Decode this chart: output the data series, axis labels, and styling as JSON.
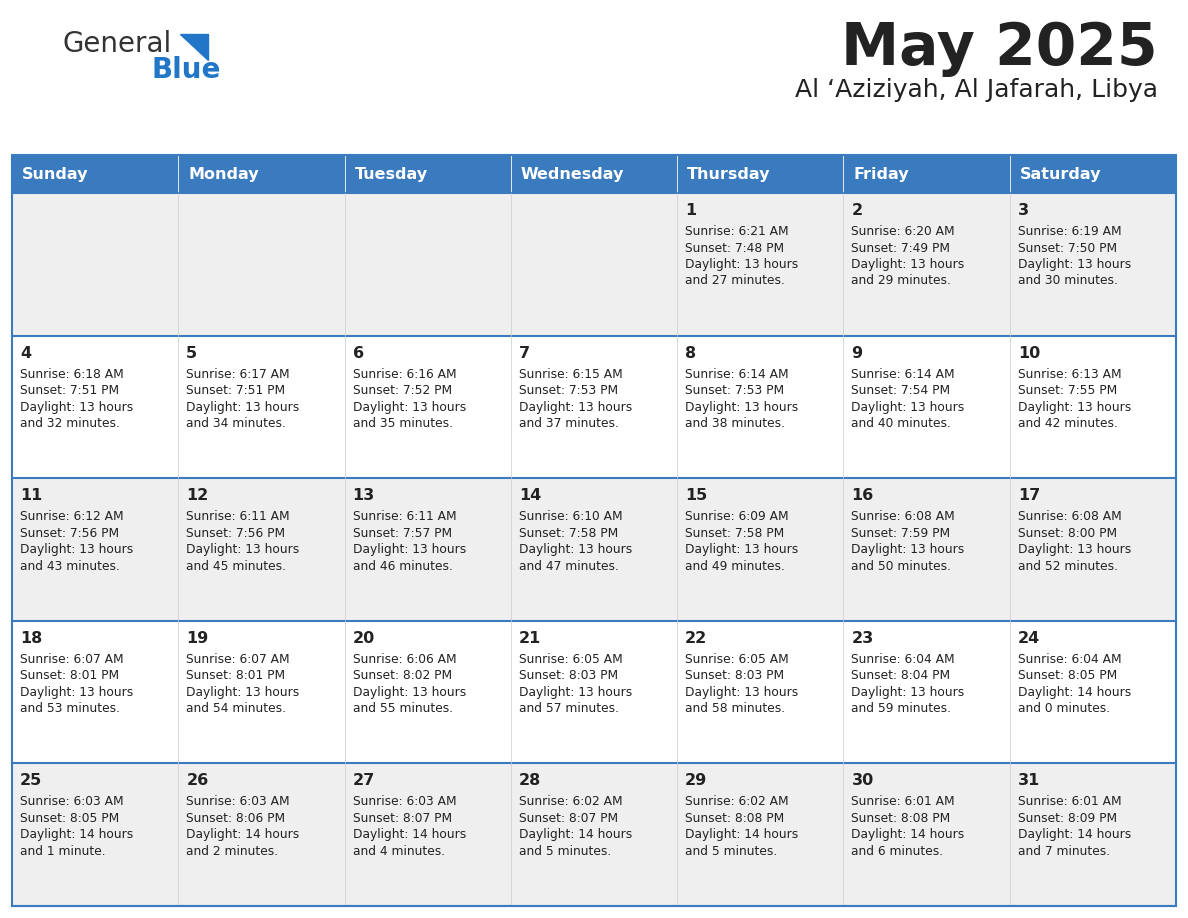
{
  "title": "May 2025",
  "subtitle": "Al ‘Aziziyah, Al Jafarah, Libya",
  "header_bg": "#3a7abf",
  "header_text_color": "#ffffff",
  "day_names": [
    "Sunday",
    "Monday",
    "Tuesday",
    "Wednesday",
    "Thursday",
    "Friday",
    "Saturday"
  ],
  "row_bg_odd": "#efefef",
  "row_bg_even": "#ffffff",
  "cell_border_color": "#3a7abf",
  "text_color": "#222222",
  "days": [
    {
      "day": 1,
      "col": 4,
      "row": 0,
      "sunrise": "6:21 AM",
      "sunset": "7:48 PM",
      "daylight_h": "13 hours",
      "daylight_m": "and 27 minutes."
    },
    {
      "day": 2,
      "col": 5,
      "row": 0,
      "sunrise": "6:20 AM",
      "sunset": "7:49 PM",
      "daylight_h": "13 hours",
      "daylight_m": "and 29 minutes."
    },
    {
      "day": 3,
      "col": 6,
      "row": 0,
      "sunrise": "6:19 AM",
      "sunset": "7:50 PM",
      "daylight_h": "13 hours",
      "daylight_m": "and 30 minutes."
    },
    {
      "day": 4,
      "col": 0,
      "row": 1,
      "sunrise": "6:18 AM",
      "sunset": "7:51 PM",
      "daylight_h": "13 hours",
      "daylight_m": "and 32 minutes."
    },
    {
      "day": 5,
      "col": 1,
      "row": 1,
      "sunrise": "6:17 AM",
      "sunset": "7:51 PM",
      "daylight_h": "13 hours",
      "daylight_m": "and 34 minutes."
    },
    {
      "day": 6,
      "col": 2,
      "row": 1,
      "sunrise": "6:16 AM",
      "sunset": "7:52 PM",
      "daylight_h": "13 hours",
      "daylight_m": "and 35 minutes."
    },
    {
      "day": 7,
      "col": 3,
      "row": 1,
      "sunrise": "6:15 AM",
      "sunset": "7:53 PM",
      "daylight_h": "13 hours",
      "daylight_m": "and 37 minutes."
    },
    {
      "day": 8,
      "col": 4,
      "row": 1,
      "sunrise": "6:14 AM",
      "sunset": "7:53 PM",
      "daylight_h": "13 hours",
      "daylight_m": "and 38 minutes."
    },
    {
      "day": 9,
      "col": 5,
      "row": 1,
      "sunrise": "6:14 AM",
      "sunset": "7:54 PM",
      "daylight_h": "13 hours",
      "daylight_m": "and 40 minutes."
    },
    {
      "day": 10,
      "col": 6,
      "row": 1,
      "sunrise": "6:13 AM",
      "sunset": "7:55 PM",
      "daylight_h": "13 hours",
      "daylight_m": "and 42 minutes."
    },
    {
      "day": 11,
      "col": 0,
      "row": 2,
      "sunrise": "6:12 AM",
      "sunset": "7:56 PM",
      "daylight_h": "13 hours",
      "daylight_m": "and 43 minutes."
    },
    {
      "day": 12,
      "col": 1,
      "row": 2,
      "sunrise": "6:11 AM",
      "sunset": "7:56 PM",
      "daylight_h": "13 hours",
      "daylight_m": "and 45 minutes."
    },
    {
      "day": 13,
      "col": 2,
      "row": 2,
      "sunrise": "6:11 AM",
      "sunset": "7:57 PM",
      "daylight_h": "13 hours",
      "daylight_m": "and 46 minutes."
    },
    {
      "day": 14,
      "col": 3,
      "row": 2,
      "sunrise": "6:10 AM",
      "sunset": "7:58 PM",
      "daylight_h": "13 hours",
      "daylight_m": "and 47 minutes."
    },
    {
      "day": 15,
      "col": 4,
      "row": 2,
      "sunrise": "6:09 AM",
      "sunset": "7:58 PM",
      "daylight_h": "13 hours",
      "daylight_m": "and 49 minutes."
    },
    {
      "day": 16,
      "col": 5,
      "row": 2,
      "sunrise": "6:08 AM",
      "sunset": "7:59 PM",
      "daylight_h": "13 hours",
      "daylight_m": "and 50 minutes."
    },
    {
      "day": 17,
      "col": 6,
      "row": 2,
      "sunrise": "6:08 AM",
      "sunset": "8:00 PM",
      "daylight_h": "13 hours",
      "daylight_m": "and 52 minutes."
    },
    {
      "day": 18,
      "col": 0,
      "row": 3,
      "sunrise": "6:07 AM",
      "sunset": "8:01 PM",
      "daylight_h": "13 hours",
      "daylight_m": "and 53 minutes."
    },
    {
      "day": 19,
      "col": 1,
      "row": 3,
      "sunrise": "6:07 AM",
      "sunset": "8:01 PM",
      "daylight_h": "13 hours",
      "daylight_m": "and 54 minutes."
    },
    {
      "day": 20,
      "col": 2,
      "row": 3,
      "sunrise": "6:06 AM",
      "sunset": "8:02 PM",
      "daylight_h": "13 hours",
      "daylight_m": "and 55 minutes."
    },
    {
      "day": 21,
      "col": 3,
      "row": 3,
      "sunrise": "6:05 AM",
      "sunset": "8:03 PM",
      "daylight_h": "13 hours",
      "daylight_m": "and 57 minutes."
    },
    {
      "day": 22,
      "col": 4,
      "row": 3,
      "sunrise": "6:05 AM",
      "sunset": "8:03 PM",
      "daylight_h": "13 hours",
      "daylight_m": "and 58 minutes."
    },
    {
      "day": 23,
      "col": 5,
      "row": 3,
      "sunrise": "6:04 AM",
      "sunset": "8:04 PM",
      "daylight_h": "13 hours",
      "daylight_m": "and 59 minutes."
    },
    {
      "day": 24,
      "col": 6,
      "row": 3,
      "sunrise": "6:04 AM",
      "sunset": "8:05 PM",
      "daylight_h": "14 hours",
      "daylight_m": "and 0 minutes."
    },
    {
      "day": 25,
      "col": 0,
      "row": 4,
      "sunrise": "6:03 AM",
      "sunset": "8:05 PM",
      "daylight_h": "14 hours",
      "daylight_m": "and 1 minute."
    },
    {
      "day": 26,
      "col": 1,
      "row": 4,
      "sunrise": "6:03 AM",
      "sunset": "8:06 PM",
      "daylight_h": "14 hours",
      "daylight_m": "and 2 minutes."
    },
    {
      "day": 27,
      "col": 2,
      "row": 4,
      "sunrise": "6:03 AM",
      "sunset": "8:07 PM",
      "daylight_h": "14 hours",
      "daylight_m": "and 4 minutes."
    },
    {
      "day": 28,
      "col": 3,
      "row": 4,
      "sunrise": "6:02 AM",
      "sunset": "8:07 PM",
      "daylight_h": "14 hours",
      "daylight_m": "and 5 minutes."
    },
    {
      "day": 29,
      "col": 4,
      "row": 4,
      "sunrise": "6:02 AM",
      "sunset": "8:08 PM",
      "daylight_h": "14 hours",
      "daylight_m": "and 5 minutes."
    },
    {
      "day": 30,
      "col": 5,
      "row": 4,
      "sunrise": "6:01 AM",
      "sunset": "8:08 PM",
      "daylight_h": "14 hours",
      "daylight_m": "and 6 minutes."
    },
    {
      "day": 31,
      "col": 6,
      "row": 4,
      "sunrise": "6:01 AM",
      "sunset": "8:09 PM",
      "daylight_h": "14 hours",
      "daylight_m": "and 7 minutes."
    }
  ]
}
